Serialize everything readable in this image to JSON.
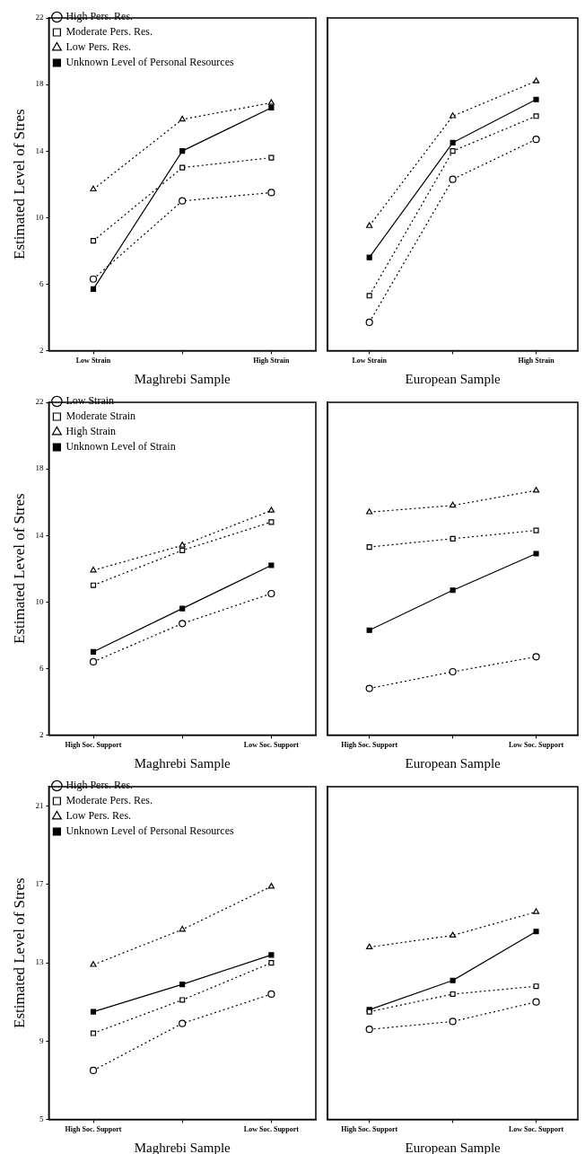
{
  "chart_data": [
    {
      "type": "line",
      "categories": [
        "Low Strain",
        null,
        "High Strain"
      ],
      "xlabel": "Maghrebi Sample",
      "ylabel": "Estimated Level of Stres",
      "ylim": [
        2,
        22
      ],
      "yticks": [
        2,
        6,
        10,
        14,
        18,
        22
      ],
      "legend": "top",
      "series": [
        {
          "name": "High Pers. Res.",
          "color": "#000000",
          "marker": "circle",
          "line_style": "dotted",
          "values": [
            6.3,
            11.0,
            11.5
          ]
        },
        {
          "name": "Moderate Pers. Res.",
          "color": "#000000",
          "marker": "square",
          "line_style": "dotted",
          "values": [
            8.6,
            13.0,
            13.6
          ]
        },
        {
          "name": "Low Pers. Res.",
          "color": "#000000",
          "marker": "triangle",
          "line_style": "dotted",
          "values": [
            11.7,
            15.9,
            16.9
          ]
        },
        {
          "name": "Unknown Level of Personal Resources",
          "color": "#000000",
          "marker": "square",
          "line_style": "solid",
          "values": [
            5.7,
            14.0,
            16.6
          ]
        }
      ]
    },
    {
      "type": "line",
      "categories": [
        "Low Strain",
        null,
        "High Strain"
      ],
      "xlabel": "European Sample",
      "ylim": [
        2,
        22
      ],
      "yticks": [
        2,
        6,
        10,
        14,
        18,
        22
      ],
      "tick_labels": "x",
      "series": [
        {
          "color": "#000000",
          "marker": "circle",
          "line_style": "dotted",
          "values": [
            3.7,
            12.3,
            14.7
          ]
        },
        {
          "color": "#000000",
          "marker": "square",
          "line_style": "dotted",
          "values": [
            5.3,
            14.0,
            16.1
          ]
        },
        {
          "color": "#000000",
          "marker": "triangle",
          "line_style": "dotted",
          "values": [
            9.5,
            16.1,
            18.2
          ]
        },
        {
          "color": "#000000",
          "marker": "square",
          "line_style": "solid",
          "values": [
            7.6,
            14.5,
            17.1
          ]
        }
      ]
    },
    {
      "type": "line",
      "categories": [
        "High Soc. Support",
        null,
        "Low Soc. Support"
      ],
      "xlabel": "Maghrebi Sample",
      "ylabel": "Estimated Level of Stres",
      "ylim": [
        2,
        22
      ],
      "yticks": [
        2,
        6,
        10,
        14,
        18,
        22
      ],
      "legend": "top",
      "series": [
        {
          "name": "Low Strain",
          "color": "#000000",
          "marker": "circle",
          "line_style": "dotted",
          "values": [
            6.4,
            8.7,
            10.5
          ]
        },
        {
          "name": "Moderate Strain",
          "color": "#000000",
          "marker": "square",
          "line_style": "dotted",
          "values": [
            11.0,
            13.1,
            14.8
          ]
        },
        {
          "name": "High Strain",
          "color": "#000000",
          "marker": "triangle",
          "line_style": "dotted",
          "values": [
            11.9,
            13.4,
            15.5
          ]
        },
        {
          "name": "Unknown Level of Strain",
          "color": "#000000",
          "marker": "square",
          "line_style": "solid",
          "values": [
            7.0,
            9.6,
            12.2
          ]
        }
      ]
    },
    {
      "type": "line",
      "categories": [
        "High Soc. Support",
        null,
        "Low Soc. Support"
      ],
      "xlabel": "European Sample",
      "ylim": [
        2,
        22
      ],
      "yticks": [
        2,
        6,
        10,
        14,
        18,
        22
      ],
      "tick_labels": "x",
      "series": [
        {
          "color": "#000000",
          "marker": "circle",
          "line_style": "dotted",
          "values": [
            4.8,
            5.8,
            6.7
          ]
        },
        {
          "color": "#000000",
          "marker": "square",
          "line_style": "dotted",
          "values": [
            13.3,
            13.8,
            14.3
          ]
        },
        {
          "color": "#000000",
          "marker": "triangle",
          "line_style": "dotted",
          "values": [
            15.4,
            15.8,
            16.7
          ]
        },
        {
          "color": "#000000",
          "marker": "square",
          "line_style": "solid",
          "values": [
            8.3,
            10.7,
            12.9
          ]
        }
      ]
    },
    {
      "type": "line",
      "categories": [
        "High Soc. Support",
        null,
        "Low Soc. Support"
      ],
      "xlabel": "Maghrebi Sample",
      "ylabel": "Estimated Level of Stres",
      "ylim": [
        5,
        22
      ],
      "yticks": [
        5,
        9,
        13,
        17,
        21
      ],
      "legend": "top",
      "series": [
        {
          "name": "High Pers. Res.",
          "color": "#000000",
          "marker": "circle",
          "line_style": "dotted",
          "values": [
            7.5,
            9.9,
            11.4
          ]
        },
        {
          "name": "Moderate Pers. Res.",
          "color": "#000000",
          "marker": "square",
          "line_style": "dotted",
          "values": [
            9.4,
            11.1,
            13.0
          ]
        },
        {
          "name": "Low Pers. Res.",
          "color": "#000000",
          "marker": "triangle",
          "line_style": "dotted",
          "values": [
            12.9,
            14.7,
            16.9
          ]
        },
        {
          "name": "Unknown Level of Personal Resources",
          "color": "#000000",
          "marker": "square",
          "line_style": "solid",
          "values": [
            10.5,
            11.9,
            13.4
          ]
        }
      ]
    },
    {
      "type": "line",
      "categories": [
        "High Soc. Support",
        null,
        "Low Soc. Support"
      ],
      "xlabel": "European Sample",
      "ylim": [
        5,
        22
      ],
      "yticks": [
        5,
        9,
        13,
        17,
        21
      ],
      "tick_labels": "x",
      "series": [
        {
          "color": "#000000",
          "marker": "circle",
          "line_style": "dotted",
          "values": [
            9.6,
            10.0,
            11.0
          ]
        },
        {
          "color": "#000000",
          "marker": "square",
          "line_style": "dotted",
          "values": [
            10.5,
            11.4,
            11.8
          ]
        },
        {
          "color": "#000000",
          "marker": "triangle",
          "line_style": "dotted",
          "values": [
            13.8,
            14.4,
            15.6
          ]
        },
        {
          "color": "#000000",
          "marker": "square",
          "line_style": "solid",
          "values": [
            10.6,
            12.1,
            14.6
          ]
        }
      ]
    }
  ]
}
